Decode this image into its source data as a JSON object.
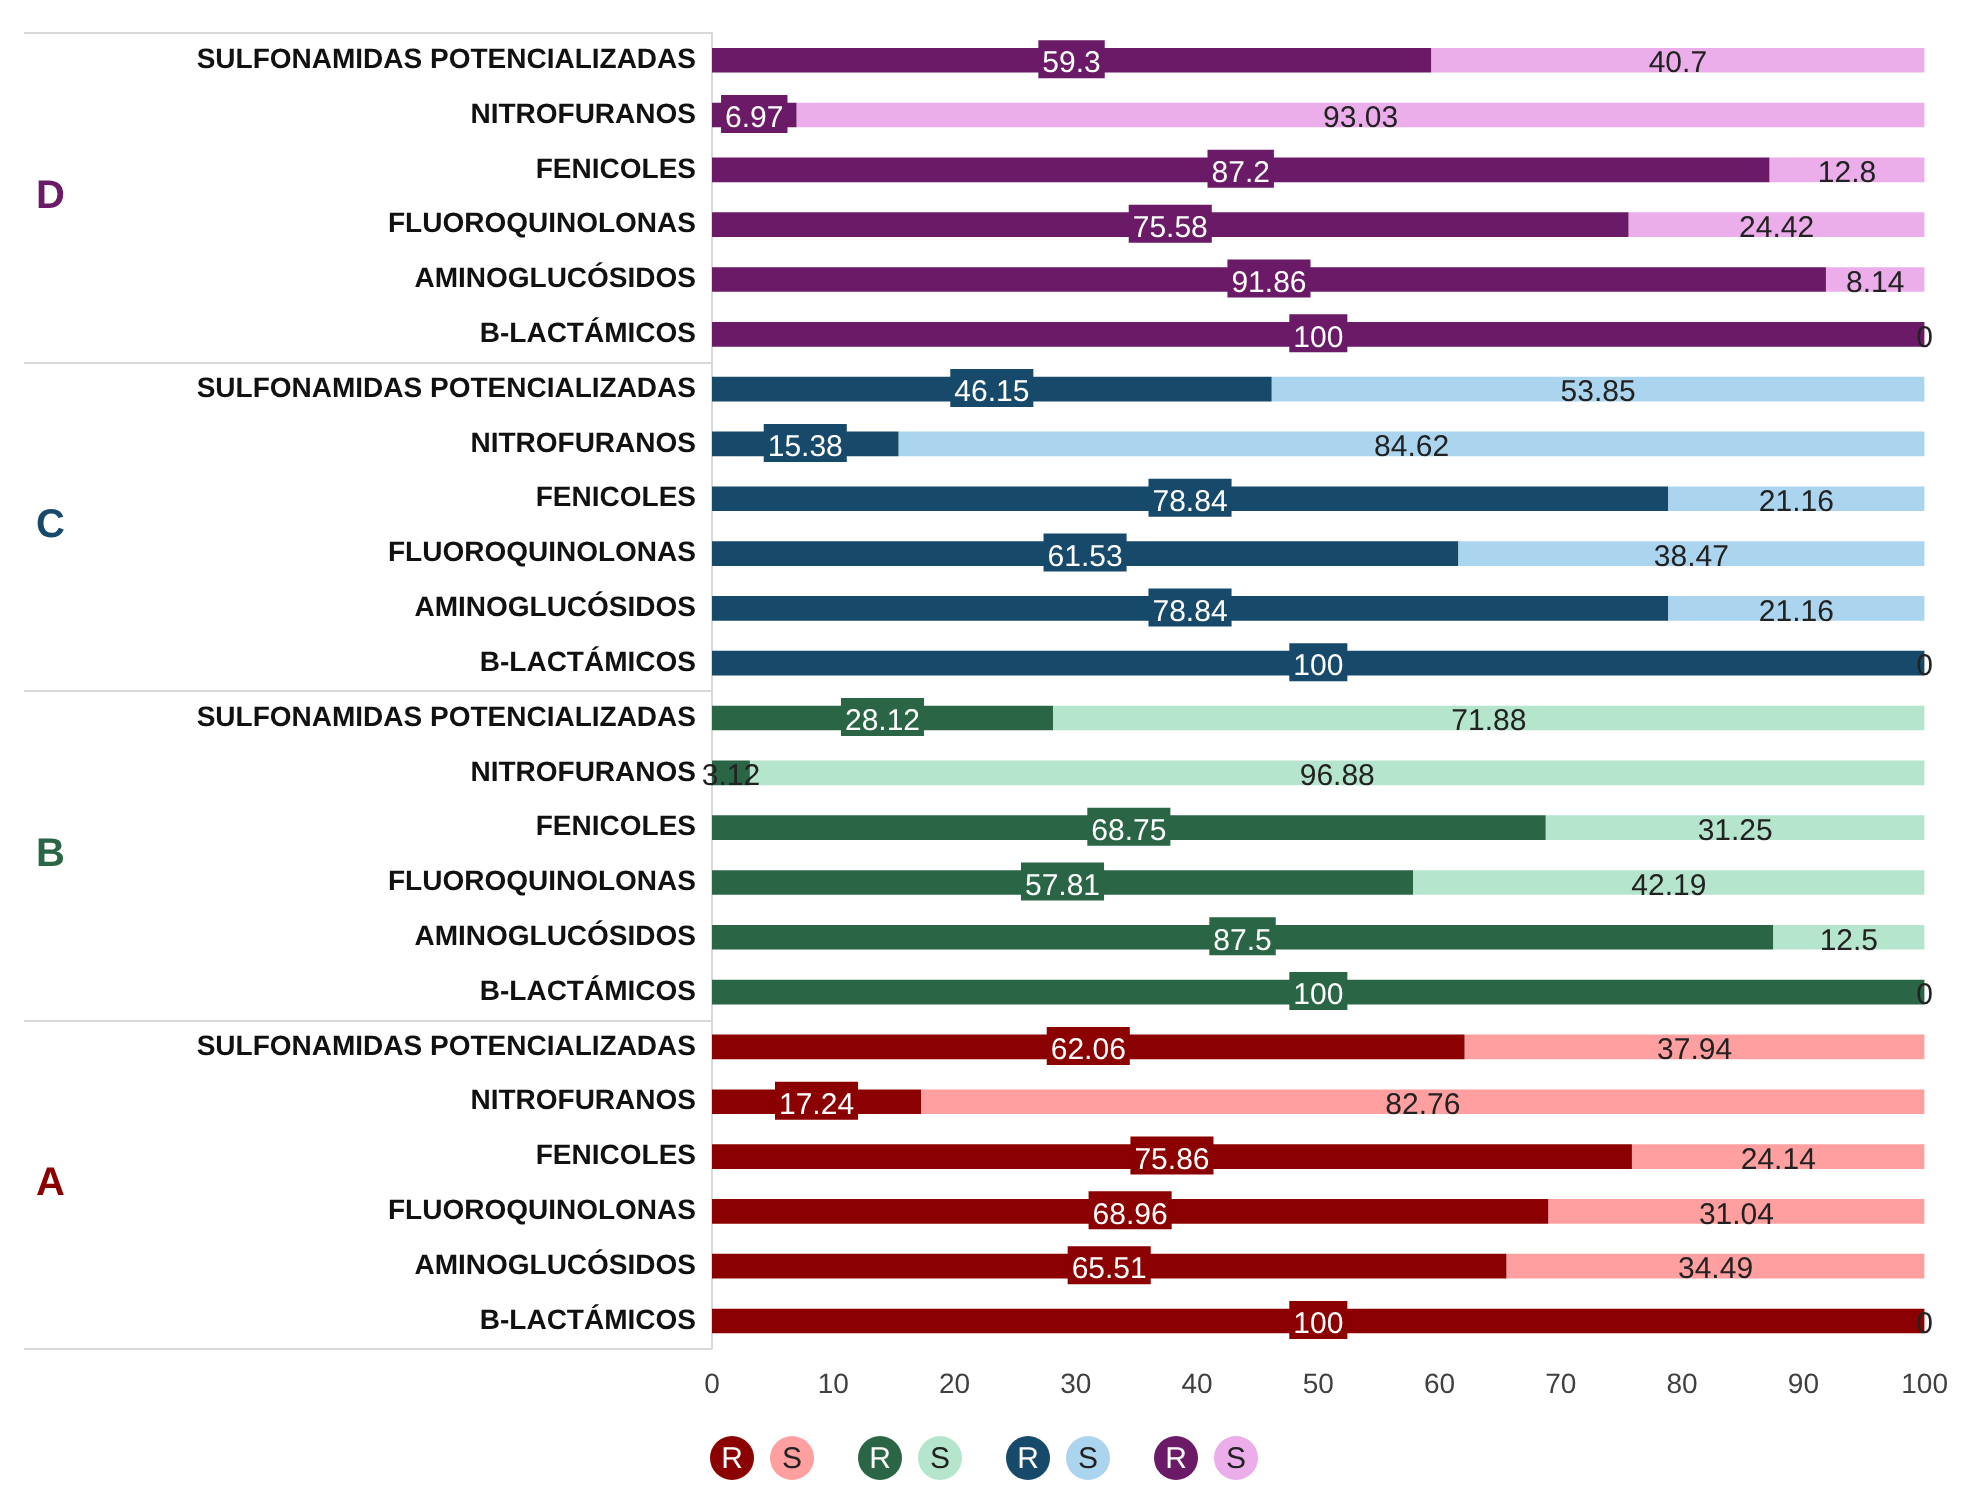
{
  "chart_data": {
    "type": "bar",
    "orientation": "horizontal",
    "stacked": true,
    "categories": [
      "SULFONAMIDAS POTENCIALIZADAS",
      "NITROFURANOS",
      "FENICOLES",
      "FLUOROQUINOLONAS",
      "AMINOGLUCÓSIDOS",
      "B-LACTÁMICOS",
      "SULFONAMIDAS POTENCIALIZADAS",
      "NITROFURANOS",
      "FENICOLES",
      "FLUOROQUINOLONAS",
      "AMINOGLUCÓSIDOS",
      "B-LACTÁMICOS",
      "SULFONAMIDAS POTENCIALIZADAS",
      "NITROFURANOS",
      "FENICOLES",
      "FLUOROQUINOLONAS",
      "AMINOGLUCÓSIDOS",
      "B-LACTÁMICOS",
      "SULFONAMIDAS POTENCIALIZADAS",
      "NITROFURANOS",
      "FENICOLES",
      "FLUOROQUINOLONAS",
      "AMINOGLUCÓSIDOS",
      "B-LACTÁMICOS"
    ],
    "series": [
      {
        "name": "R",
        "color": "#8b0000",
        "values": [
          null,
          null,
          null,
          null,
          null,
          null,
          null,
          null,
          null,
          null,
          null,
          null,
          null,
          null,
          null,
          null,
          null,
          null,
          62.06,
          17.24,
          75.86,
          68.96,
          65.51,
          100
        ]
      },
      {
        "name": "S",
        "color": "#ff9f9f",
        "values": [
          null,
          null,
          null,
          null,
          null,
          null,
          null,
          null,
          null,
          null,
          null,
          null,
          null,
          null,
          null,
          null,
          null,
          null,
          37.94,
          82.76,
          24.14,
          31.04,
          34.49,
          0
        ]
      },
      {
        "name": "R",
        "color": "#2a6646",
        "values": [
          null,
          null,
          null,
          null,
          null,
          null,
          null,
          null,
          null,
          null,
          null,
          null,
          28.12,
          3.12,
          68.75,
          57.81,
          87.5,
          100,
          null,
          null,
          null,
          null,
          null,
          null
        ]
      },
      {
        "name": "S",
        "color": "#b5e6cd",
        "values": [
          null,
          null,
          null,
          null,
          null,
          null,
          null,
          null,
          null,
          null,
          null,
          null,
          71.88,
          96.88,
          31.25,
          42.19,
          12.5,
          0,
          null,
          null,
          null,
          null,
          null,
          null
        ]
      },
      {
        "name": "R",
        "color": "#174a6a",
        "values": [
          null,
          null,
          null,
          null,
          null,
          null,
          46.15,
          15.38,
          78.84,
          61.53,
          78.84,
          100,
          null,
          null,
          null,
          null,
          null,
          null,
          null,
          null,
          null,
          null,
          null,
          null
        ]
      },
      {
        "name": "S",
        "color": "#abd4ef",
        "values": [
          null,
          null,
          null,
          null,
          null,
          null,
          53.85,
          84.62,
          21.16,
          38.47,
          21.16,
          0,
          null,
          null,
          null,
          null,
          null,
          null,
          null,
          null,
          null,
          null,
          null,
          null
        ]
      },
      {
        "name": "R",
        "color": "#6a1a66",
        "values": [
          59.3,
          6.97,
          87.2,
          75.58,
          91.86,
          100,
          null,
          null,
          null,
          null,
          null,
          null,
          null,
          null,
          null,
          null,
          null,
          null,
          null,
          null,
          null,
          null,
          null,
          null
        ]
      },
      {
        "name": "S",
        "color": "#ebaeeb",
        "values": [
          40.7,
          93.03,
          12.8,
          24.42,
          8.14,
          0,
          null,
          null,
          null,
          null,
          null,
          null,
          null,
          null,
          null,
          null,
          null,
          null,
          null,
          null,
          null,
          null,
          null,
          null
        ]
      }
    ],
    "xlim": [
      0,
      100
    ],
    "xticks": [
      0,
      10,
      20,
      30,
      40,
      50,
      60,
      70,
      80,
      90,
      100
    ],
    "annotations": [
      "D",
      "C",
      "B",
      "A"
    ],
    "data_labels": true,
    "grid": false,
    "legend": "bottom"
  }
}
